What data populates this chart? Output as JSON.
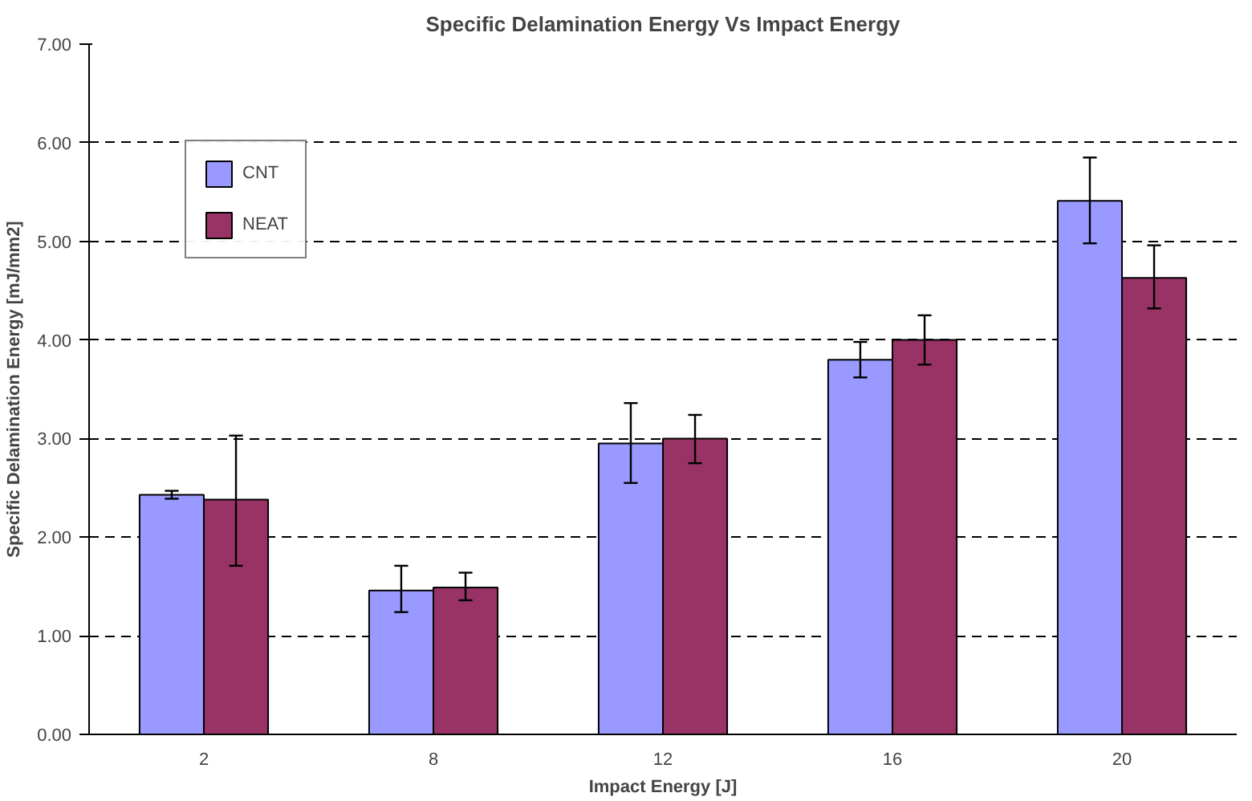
{
  "chart_data": {
    "type": "bar",
    "title": "Specific Delamination Energy Vs Impact Energy",
    "xlabel": "Impact Energy [J]",
    "ylabel": "Specific Delamination Energy [mJ/mm2]",
    "categories": [
      "2",
      "8",
      "12",
      "16",
      "20"
    ],
    "series": [
      {
        "name": "CNT",
        "color": "#9999ff",
        "values": [
          2.43,
          1.46,
          2.95,
          3.8,
          5.41
        ],
        "errors": [
          [
            2.39,
            2.47
          ],
          [
            1.24,
            1.71
          ],
          [
            2.55,
            3.36
          ],
          [
            3.62,
            3.98
          ],
          [
            4.98,
            5.85
          ]
        ]
      },
      {
        "name": "NEAT",
        "color": "#993366",
        "values": [
          2.38,
          1.49,
          3.0,
          4.0,
          4.63
        ],
        "errors": [
          [
            1.71,
            3.03
          ],
          [
            1.36,
            1.64
          ],
          [
            2.75,
            3.24
          ],
          [
            3.75,
            4.25
          ],
          [
            4.32,
            4.96
          ]
        ]
      }
    ],
    "ylim": [
      0,
      7
    ],
    "yticks": [
      {
        "value": 0,
        "label": "0.00"
      },
      {
        "value": 1,
        "label": "1.00"
      },
      {
        "value": 2,
        "label": "2.00"
      },
      {
        "value": 3,
        "label": "3.00"
      },
      {
        "value": 4,
        "label": "4.00"
      },
      {
        "value": 5,
        "label": "5.00"
      },
      {
        "value": 6,
        "label": "6.00"
      },
      {
        "value": 7,
        "label": "7.00"
      }
    ],
    "grid": "y",
    "legend": "top left"
  }
}
